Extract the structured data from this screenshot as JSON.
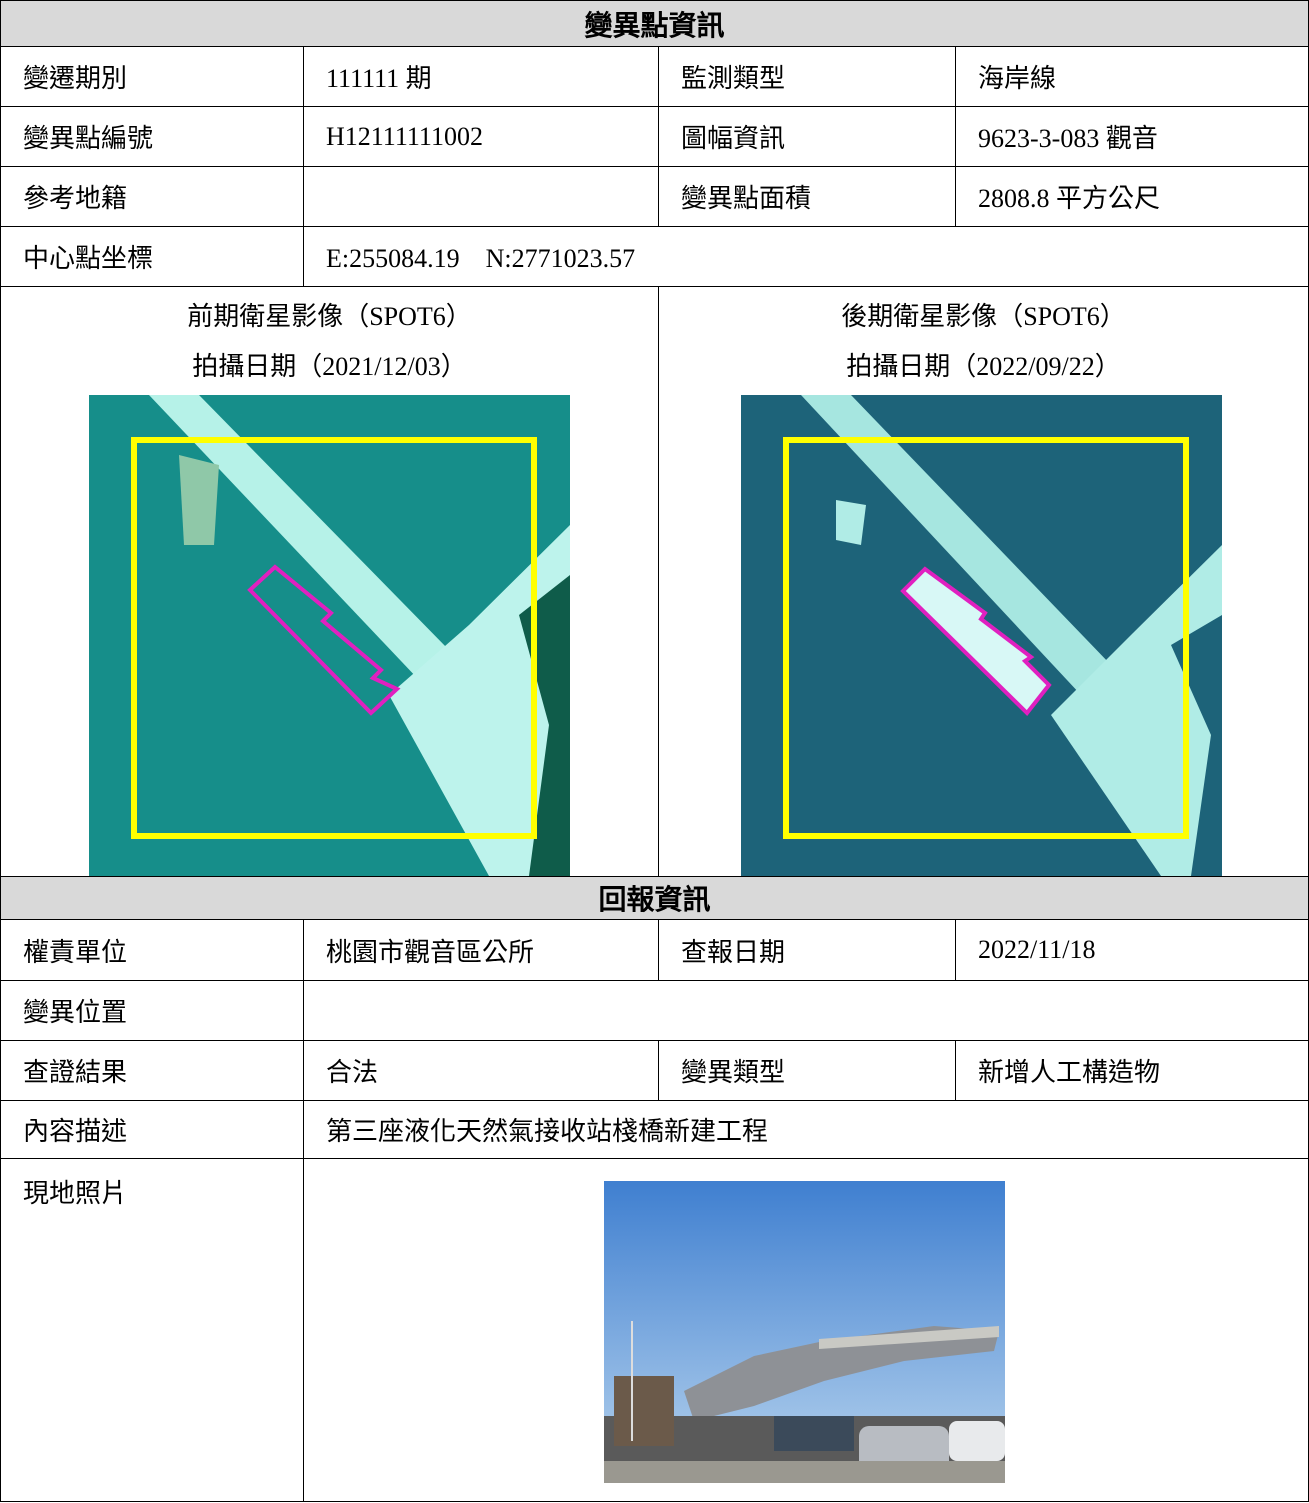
{
  "section1": {
    "title": "變異點資訊",
    "rows": [
      [
        "變遷期別",
        "111111 期",
        "監測類型",
        "海岸線"
      ],
      [
        "變異點編號",
        "H12111111002",
        "圖幅資訊",
        "9623-3-083 觀音"
      ],
      [
        "參考地籍",
        "變異點面積",
        "2808.8 平方公尺"
      ],
      [
        "中心點坐標",
        "E:255084.19　N:2771023.57"
      ]
    ],
    "images": [
      {
        "caption": "前期衛星影像（SPOT6）",
        "date": "拍攝日期（2021/12/03）"
      },
      {
        "caption": "後期衛星影像（SPOT6）",
        "date": "拍攝日期（2022/09/22）"
      }
    ]
  },
  "section2": {
    "title": "回報資訊",
    "rows": [
      [
        "權責單位",
        "桃園市觀音區公所",
        "查報日期",
        "2022/11/18"
      ],
      [
        "變異位置"
      ],
      [
        "查證結果",
        "合法",
        "變異類型",
        "新增人工構造物"
      ],
      [
        "內容描述",
        "第三座液化天然氣接收站棧橋新建工程"
      ],
      [
        "現地照片"
      ]
    ]
  }
}
